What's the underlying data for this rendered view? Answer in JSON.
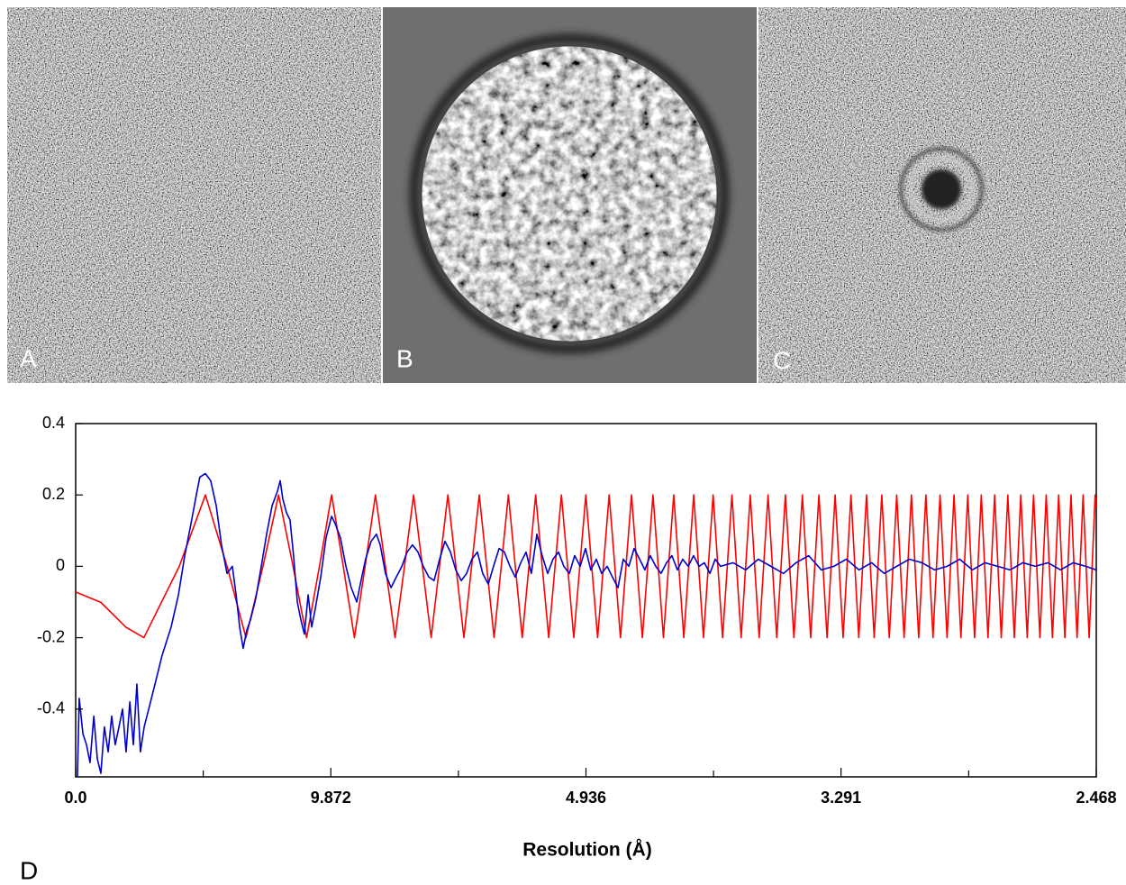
{
  "panels": [
    {
      "label": "A"
    },
    {
      "label": "B"
    },
    {
      "label": "C"
    }
  ],
  "chart_data": {
    "type": "line",
    "panel_label": "D",
    "xlabel": "Resolution (Å)",
    "xlim": [
      0,
      0.405186
    ],
    "xticks": [
      {
        "value": 0,
        "label": "0.0"
      },
      {
        "value": 0.101297,
        "label": "9.872"
      },
      {
        "value": 0.202593,
        "label": "4.936"
      },
      {
        "value": 0.303859,
        "label": "3.291"
      },
      {
        "value": 0.405186,
        "label": "2.468"
      }
    ],
    "xticks_minor": [
      0.050648,
      0.151945,
      0.253226,
      0.354523
    ],
    "ylim": [
      -0.59,
      0.4
    ],
    "yticks": [
      0.4,
      0.2,
      0,
      -0.2,
      -0.4
    ],
    "series": [
      {
        "color": "#ff0000",
        "x": [
          0,
          0.01,
          0.02,
          0.02708,
          0.04114,
          0.0515,
          0.0601,
          0.06761,
          0.07436,
          0.08056,
          0.08631,
          0.09169,
          0.09678,
          0.10162,
          0.10624,
          0.11066,
          0.11491,
          0.11901,
          0.12297,
          0.12681,
          0.13054,
          0.13416,
          0.14113,
          0.14777,
          0.15413,
          0.16024,
          0.16611,
          0.17179,
          0.17728,
          0.18262,
          0.1878,
          0.19284,
          0.19775,
          0.20254,
          0.20722,
          0.2118,
          0.21629,
          0.22067,
          0.22498,
          0.2292,
          0.23335,
          0.23743,
          0.24143,
          0.24537,
          0.24925,
          0.25307,
          0.25684,
          0.26054,
          0.2642,
          0.26781,
          0.27136,
          0.27488,
          0.27834,
          0.28177,
          0.28515,
          0.2885,
          0.2918,
          0.29507,
          0.29831,
          0.30151,
          0.30467,
          0.3078,
          0.3109,
          0.31397,
          0.31702,
          0.32003,
          0.32301,
          0.32596,
          0.32889,
          0.3318,
          0.33468,
          0.33754,
          0.34037,
          0.34316,
          0.34595,
          0.34871,
          0.35145,
          0.35417,
          0.35687,
          0.35954,
          0.3622,
          0.36484,
          0.36747,
          0.37007,
          0.37265,
          0.37522,
          0.37777,
          0.38029,
          0.38281,
          0.38531,
          0.38779,
          0.39026,
          0.39271,
          0.39515,
          0.39756,
          0.39996,
          0.40235,
          0.40474,
          0.405186
        ],
        "values": [
          -0.072,
          -0.101,
          -0.171,
          -0.2,
          0,
          0.2,
          0,
          -0.2,
          0,
          0.2,
          0,
          -0.2,
          0,
          0.2,
          0,
          -0.2,
          0,
          0.2,
          0,
          -0.2,
          0,
          0.2,
          -0.2,
          0.2,
          -0.2,
          0.2,
          -0.2,
          0.2,
          -0.2,
          0.2,
          -0.2,
          0.2,
          -0.2,
          0.2,
          -0.2,
          0.2,
          -0.2,
          0.2,
          -0.2,
          0.2,
          -0.2,
          0.2,
          -0.2,
          0.2,
          -0.2,
          0.2,
          -0.2,
          0.2,
          -0.2,
          0.2,
          -0.2,
          0.2,
          -0.2,
          0.2,
          -0.2,
          0.2,
          -0.2,
          0.2,
          -0.2,
          0.2,
          -0.2,
          0.2,
          -0.2,
          0.2,
          -0.2,
          0.2,
          -0.2,
          0.2,
          -0.2,
          0.2,
          -0.2,
          0.2,
          -0.2,
          0.2,
          -0.2,
          0.2,
          -0.2,
          0.2,
          -0.2,
          0.2,
          -0.2,
          0.2,
          -0.2,
          0.2,
          -0.2,
          0.2,
          -0.2,
          0.2,
          -0.2,
          0.2,
          -0.2,
          0.2,
          -0.2,
          0.2,
          -0.2,
          0.2,
          -0.2,
          0.2,
          0.163
        ]
      },
      {
        "color": "#0000cc",
        "x": [
          0.0007,
          0.0014,
          0.0029,
          0.0043,
          0.0057,
          0.0072,
          0.0086,
          0.01,
          0.0114,
          0.0129,
          0.0143,
          0.0157,
          0.0172,
          0.0186,
          0.02,
          0.0215,
          0.0229,
          0.0243,
          0.0257,
          0.0272,
          0.029,
          0.0315,
          0.0343,
          0.0379,
          0.0408,
          0.0433,
          0.0458,
          0.0479,
          0.0493,
          0.0515,
          0.0536,
          0.0558,
          0.0579,
          0.0601,
          0.0622,
          0.0637,
          0.0651,
          0.0665,
          0.0679,
          0.0694,
          0.0715,
          0.0737,
          0.0758,
          0.078,
          0.0801,
          0.0812,
          0.0822,
          0.0837,
          0.0851,
          0.0865,
          0.088,
          0.0894,
          0.0908,
          0.0923,
          0.0937,
          0.0951,
          0.0973,
          0.0994,
          0.1016,
          0.103,
          0.1051,
          0.1073,
          0.1094,
          0.1116,
          0.113,
          0.1151,
          0.1173,
          0.1194,
          0.1209,
          0.123,
          0.1252,
          0.1273,
          0.1295,
          0.1316,
          0.1337,
          0.1359,
          0.138,
          0.1402,
          0.1423,
          0.1445,
          0.1466,
          0.1488,
          0.1509,
          0.1531,
          0.1552,
          0.1573,
          0.1595,
          0.1616,
          0.1638,
          0.1659,
          0.1681,
          0.1702,
          0.1724,
          0.1745,
          0.1767,
          0.1788,
          0.1809,
          0.1831,
          0.1852,
          0.1874,
          0.1895,
          0.1917,
          0.1938,
          0.196,
          0.1981,
          0.2003,
          0.2024,
          0.2045,
          0.2067,
          0.2088,
          0.211,
          0.2131,
          0.2153,
          0.2174,
          0.2196,
          0.2217,
          0.2239,
          0.226,
          0.2281,
          0.2303,
          0.2324,
          0.2346,
          0.2367,
          0.2389,
          0.241,
          0.2432,
          0.2453,
          0.2475,
          0.2496,
          0.2518,
          0.2539,
          0.256,
          0.261,
          0.266,
          0.271,
          0.276,
          0.281,
          0.286,
          0.291,
          0.296,
          0.301,
          0.306,
          0.311,
          0.316,
          0.321,
          0.326,
          0.331,
          0.336,
          0.341,
          0.346,
          0.351,
          0.356,
          0.361,
          0.366,
          0.371,
          0.376,
          0.381,
          0.386,
          0.391,
          0.396,
          0.401,
          0.405186
        ],
        "values": [
          -0.59,
          -0.37,
          -0.47,
          -0.5,
          -0.55,
          -0.42,
          -0.54,
          -0.58,
          -0.45,
          -0.52,
          -0.42,
          -0.5,
          -0.45,
          -0.4,
          -0.52,
          -0.38,
          -0.5,
          -0.33,
          -0.52,
          -0.45,
          -0.4,
          -0.33,
          -0.25,
          -0.17,
          -0.08,
          0.03,
          0.12,
          0.2,
          0.25,
          0.26,
          0.24,
          0.17,
          0.06,
          -0.02,
          0,
          -0.08,
          -0.17,
          -0.23,
          -0.18,
          -0.15,
          -0.09,
          0,
          0.09,
          0.17,
          0.21,
          0.24,
          0.19,
          0.15,
          0.13,
          0.03,
          -0.1,
          -0.15,
          -0.19,
          -0.08,
          -0.17,
          -0.12,
          -0.03,
          0.08,
          0.14,
          0.12,
          0.08,
          0,
          -0.06,
          -0.1,
          -0.05,
          0.02,
          0.07,
          0.09,
          0.06,
          -0.02,
          -0.06,
          -0.03,
          0,
          0.04,
          0.06,
          0.04,
          0,
          -0.03,
          -0.04,
          0.02,
          0.07,
          0.04,
          -0.01,
          -0.04,
          -0.02,
          0.02,
          0.04,
          -0.02,
          -0.05,
          0,
          0.05,
          0.04,
          0,
          -0.03,
          0.01,
          0.04,
          -0.02,
          0.09,
          0.03,
          -0.02,
          0.02,
          0.04,
          0,
          -0.02,
          0.03,
          0,
          0.05,
          -0.01,
          0.02,
          -0.02,
          0,
          -0.03,
          -0.06,
          0.02,
          0,
          0.05,
          0.02,
          -0.01,
          0.03,
          0,
          -0.02,
          0.01,
          0.03,
          -0.01,
          0.02,
          0,
          0.03,
          0,
          0.01,
          -0.02,
          0.02,
          0,
          0.01,
          -0.01,
          0.02,
          0,
          -0.02,
          0.01,
          0.03,
          -0.01,
          0,
          0.02,
          -0.01,
          0.01,
          -0.02,
          0,
          0.02,
          0.01,
          -0.01,
          0,
          0.02,
          -0.01,
          0.01,
          0,
          -0.01,
          0.01,
          0,
          0.01,
          -0.01,
          0.01,
          0,
          -0.01
        ]
      }
    ]
  }
}
